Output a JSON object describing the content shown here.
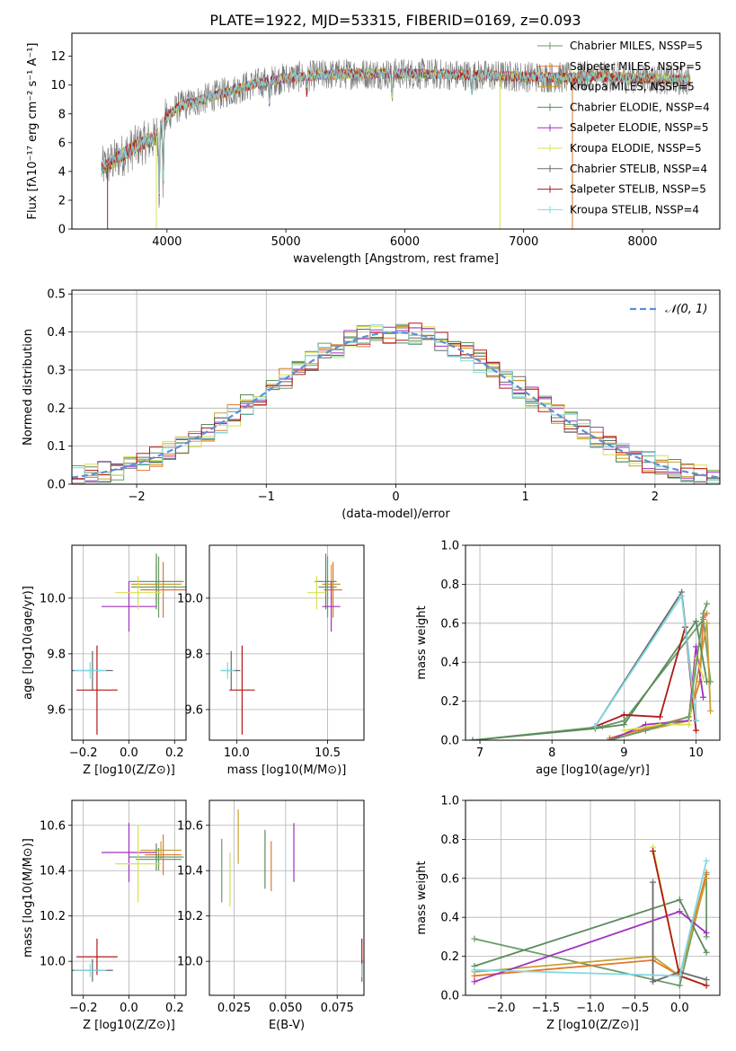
{
  "figure_title": "PLATE=1922, MJD=53315, FIBERID=0169, z=0.093",
  "series_colors": [
    "#6a9a6a",
    "#e07830",
    "#c8a030",
    "#5a8a5a",
    "#a030c0",
    "#d8e050",
    "#6a6a6a",
    "#b01818",
    "#80d8e0"
  ],
  "chart_data": [
    {
      "type": "line",
      "panel": "spectrum",
      "title": "PLATE=1922, MJD=53315, FIBERID=0169, z=0.093",
      "xlabel": "wavelength [Angstrom, rest frame]",
      "ylabel": "Flux [fλ10⁻¹⁷ erg cm⁻² s⁻¹ A⁻¹]",
      "xlim": [
        3200,
        8650
      ],
      "ylim": [
        0,
        13.6
      ],
      "xticks": [
        4000,
        5000,
        6000,
        7000,
        8000
      ],
      "yticks": [
        0,
        2,
        4,
        6,
        8,
        10,
        12
      ],
      "legend_position": "top-right",
      "series": [
        {
          "name": "Chabrier MILES, NSSP=5"
        },
        {
          "name": "Salpeter MILES, NSSP=5"
        },
        {
          "name": "Kroupa MILES, NSSP=5"
        },
        {
          "name": "Chabrier ELODIE, NSSP=4"
        },
        {
          "name": "Salpeter ELODIE, NSSP=5"
        },
        {
          "name": "Kroupa ELODIE, NSSP=5"
        },
        {
          "name": "Chabrier STELIB, NSSP=4"
        },
        {
          "name": "Salpeter STELIB, NSSP=5"
        },
        {
          "name": "Kroupa STELIB, NSSP=4"
        }
      ],
      "continuum": {
        "x": [
          3450,
          3600,
          3750,
          3900,
          4000,
          4100,
          4300,
          4500,
          4700,
          5000,
          5300,
          5600,
          6000,
          6500,
          7000,
          7400,
          7500,
          8000,
          8400
        ],
        "y": [
          4.2,
          5.0,
          5.8,
          6.3,
          7.8,
          8.5,
          9.0,
          9.5,
          10.0,
          10.5,
          10.7,
          10.8,
          10.8,
          10.7,
          10.6,
          10.5,
          10.6,
          10.5,
          10.3
        ]
      },
      "absorption_lines": [
        {
          "x": 3934,
          "y": 2.5
        },
        {
          "x": 3968,
          "y": 3.0
        },
        {
          "x": 4861,
          "y": 8.8
        },
        {
          "x": 5175,
          "y": 9.5
        },
        {
          "x": 5893,
          "y": 9.2
        },
        {
          "x": 6563,
          "y": 9.5
        }
      ],
      "spikes": [
        {
          "x": 3500,
          "y": 0,
          "series": 7
        },
        {
          "x": 3910,
          "y": 0,
          "series": 5
        },
        {
          "x": 6800,
          "y": 0,
          "series": 5
        },
        {
          "x": 7410,
          "y": 0,
          "series": 1
        }
      ]
    },
    {
      "type": "step",
      "panel": "residuals",
      "xlabel": "(data-model)/error",
      "ylabel": "Normed distribution",
      "xlim": [
        -2.5,
        2.5
      ],
      "ylim": [
        0,
        0.51
      ],
      "xticks": [
        -2,
        -1,
        0,
        1,
        2
      ],
      "yticks": [
        0.0,
        0.1,
        0.2,
        0.3,
        0.4,
        0.5
      ],
      "legend_position": "top-right",
      "legend": "𝒩(0, 1)",
      "bin_width": 0.1,
      "reference": {
        "name": "𝒩(0, 1)",
        "mean": 0,
        "sigma": 1,
        "color": "#5b8fd8"
      }
    },
    {
      "type": "scatter",
      "panel": "age_vs_Z",
      "xlabel": "Z [log10(Z/Z⊙)]",
      "ylabel": "age  [log10(age/yr)]",
      "xlim": [
        -0.25,
        0.25
      ],
      "ylim": [
        9.49,
        10.19
      ],
      "xticks": [
        -0.2,
        0.0,
        0.2
      ],
      "yticks": [
        9.6,
        9.8,
        10.0
      ],
      "points": [
        {
          "series": 0,
          "x": 0.13,
          "y": 10.04,
          "xerr": 0.12,
          "yerr": 0.11
        },
        {
          "series": 1,
          "x": 0.15,
          "y": 10.03,
          "xerr": 0.1,
          "yerr": 0.1
        },
        {
          "series": 2,
          "x": 0.12,
          "y": 10.05,
          "xerr": 0.11,
          "yerr": 0.07
        },
        {
          "series": 3,
          "x": 0.12,
          "y": 10.06,
          "xerr": 0.12,
          "yerr": 0.1
        },
        {
          "series": 4,
          "x": 0.0,
          "y": 9.97,
          "xerr": 0.12,
          "yerr": 0.09
        },
        {
          "series": 5,
          "x": 0.04,
          "y": 10.02,
          "xerr": 0.1,
          "yerr": 0.06
        },
        {
          "series": 6,
          "x": -0.16,
          "y": 9.74,
          "xerr": 0.09,
          "yerr": 0.07
        },
        {
          "series": 7,
          "x": -0.14,
          "y": 9.67,
          "xerr": 0.09,
          "yerr": 0.16
        },
        {
          "series": 8,
          "x": -0.17,
          "y": 9.74,
          "xerr": 0.07,
          "yerr": 0.03
        }
      ]
    },
    {
      "type": "scatter",
      "panel": "age_vs_mass",
      "xlabel": "mass [log10(M/M⊙)]",
      "ylabel": "",
      "xlim": [
        9.85,
        10.7
      ],
      "ylim": [
        9.49,
        10.19
      ],
      "xticks": [
        10.0,
        10.5
      ],
      "yticks": [
        9.6,
        9.8,
        10.0
      ],
      "points": [
        {
          "series": 0,
          "x": 10.5,
          "y": 10.04,
          "xerr": 0.05,
          "yerr": 0.11
        },
        {
          "series": 1,
          "x": 10.53,
          "y": 10.03,
          "xerr": 0.05,
          "yerr": 0.1
        },
        {
          "series": 2,
          "x": 10.52,
          "y": 10.05,
          "xerr": 0.05,
          "yerr": 0.07
        },
        {
          "series": 3,
          "x": 10.49,
          "y": 10.06,
          "xerr": 0.06,
          "yerr": 0.1
        },
        {
          "series": 4,
          "x": 10.52,
          "y": 9.97,
          "xerr": 0.05,
          "yerr": 0.09
        },
        {
          "series": 5,
          "x": 10.44,
          "y": 10.02,
          "xerr": 0.05,
          "yerr": 0.06
        },
        {
          "series": 6,
          "x": 9.97,
          "y": 9.74,
          "xerr": 0.05,
          "yerr": 0.07
        },
        {
          "series": 7,
          "x": 10.03,
          "y": 9.67,
          "xerr": 0.07,
          "yerr": 0.16
        },
        {
          "series": 8,
          "x": 9.95,
          "y": 9.74,
          "xerr": 0.04,
          "yerr": 0.03
        }
      ]
    },
    {
      "type": "line",
      "panel": "weight_vs_age",
      "xlabel": "age  [log10(age/yr)]",
      "ylabel": "mass weight",
      "xlim": [
        6.8,
        10.33
      ],
      "ylim": [
        0,
        1.0
      ],
      "xticks": [
        7,
        8,
        9,
        10
      ],
      "yticks": [
        0.0,
        0.2,
        0.4,
        0.6,
        0.8,
        1.0
      ],
      "series": [
        {
          "x": [
            6.9,
            8.7,
            9.0,
            10.1,
            10.2
          ],
          "y": [
            0.0,
            0.07,
            0.1,
            0.62,
            0.3
          ]
        },
        {
          "x": [
            8.8,
            9.2,
            9.9,
            10.05,
            10.1,
            10.15
          ],
          "y": [
            0.01,
            0.05,
            0.12,
            0.3,
            0.63,
            0.65
          ]
        },
        {
          "x": [
            8.8,
            9.3,
            9.9,
            9.95,
            10.15,
            10.2
          ],
          "y": [
            0.0,
            0.05,
            0.1,
            0.18,
            0.6,
            0.15
          ]
        },
        {
          "x": [
            6.9,
            8.6,
            9.0,
            10.0,
            10.15
          ],
          "y": [
            0.0,
            0.06,
            0.08,
            0.61,
            0.3
          ]
        },
        {
          "x": [
            8.8,
            9.3,
            9.9,
            10.0,
            10.1
          ],
          "y": [
            0.0,
            0.08,
            0.1,
            0.48,
            0.22
          ]
        },
        {
          "x": [
            9.0,
            9.5,
            9.9,
            10.0,
            10.1
          ],
          "y": [
            0.05,
            0.08,
            0.08,
            0.42,
            0.32
          ]
        },
        {
          "x": [
            8.6,
            9.8,
            10.0
          ],
          "y": [
            0.07,
            0.76,
            0.1
          ]
        },
        {
          "x": [
            8.6,
            9.0,
            9.5,
            9.85,
            10.0
          ],
          "y": [
            0.07,
            0.13,
            0.12,
            0.58,
            0.05
          ]
        },
        {
          "x": [
            8.6,
            9.8,
            10.0
          ],
          "y": [
            0.07,
            0.74,
            0.1
          ]
        },
        {
          "x": [
            8.8,
            9.3,
            9.9,
            10.1,
            10.15
          ],
          "y": [
            0.0,
            0.05,
            0.12,
            0.65,
            0.7
          ]
        }
      ]
    },
    {
      "type": "scatter",
      "panel": "mass_vs_Z",
      "xlabel": "Z [log10(Z/Z⊙)]",
      "ylabel": "mass [log10(M/M⊙)]",
      "xlim": [
        -0.25,
        0.25
      ],
      "ylim": [
        9.85,
        10.71
      ],
      "xticks": [
        -0.2,
        0.0,
        0.2
      ],
      "yticks": [
        10.0,
        10.2,
        10.4,
        10.6
      ],
      "points": [
        {
          "series": 0,
          "x": 0.13,
          "y": 10.45,
          "xerr": 0.1,
          "yerr": 0.05
        },
        {
          "series": 1,
          "x": 0.15,
          "y": 10.47,
          "xerr": 0.08,
          "yerr": 0.09
        },
        {
          "series": 2,
          "x": 0.14,
          "y": 10.49,
          "xerr": 0.09,
          "yerr": 0.04
        },
        {
          "series": 3,
          "x": 0.12,
          "y": 10.46,
          "xerr": 0.12,
          "yerr": 0.06
        },
        {
          "series": 4,
          "x": 0.0,
          "y": 10.48,
          "xerr": 0.12,
          "yerr": 0.13
        },
        {
          "series": 5,
          "x": 0.04,
          "y": 10.43,
          "xerr": 0.1,
          "yerr": 0.17
        },
        {
          "series": 6,
          "x": -0.16,
          "y": 9.96,
          "xerr": 0.09,
          "yerr": 0.05
        },
        {
          "series": 7,
          "x": -0.14,
          "y": 10.02,
          "xerr": 0.09,
          "yerr": 0.08
        },
        {
          "series": 8,
          "x": -0.17,
          "y": 9.96,
          "xerr": 0.07,
          "yerr": 0.03
        }
      ]
    },
    {
      "type": "scatter",
      "panel": "mass_vs_EBV",
      "xlabel": "E(B-V)",
      "ylabel": "",
      "xlim": [
        0.013,
        0.088
      ],
      "ylim": [
        9.85,
        10.71
      ],
      "xticks": [
        0.025,
        0.05,
        0.075
      ],
      "yticks": [
        10.0,
        10.2,
        10.4,
        10.6
      ],
      "points": [
        {
          "series": 0,
          "x": 0.019,
          "y": 10.4,
          "xerr": 0,
          "yerr": 0.14
        },
        {
          "series": 1,
          "x": 0.043,
          "y": 10.42,
          "xerr": 0,
          "yerr": 0.11
        },
        {
          "series": 2,
          "x": 0.027,
          "y": 10.55,
          "xerr": 0,
          "yerr": 0.12
        },
        {
          "series": 3,
          "x": 0.04,
          "y": 10.45,
          "xerr": 0,
          "yerr": 0.13
        },
        {
          "series": 4,
          "x": 0.054,
          "y": 10.48,
          "xerr": 0,
          "yerr": 0.13
        },
        {
          "series": 5,
          "x": 0.023,
          "y": 10.36,
          "xerr": 0,
          "yerr": 0.12
        },
        {
          "series": 6,
          "x": 0.087,
          "y": 9.96,
          "xerr": 0,
          "yerr": 0.05
        },
        {
          "series": 7,
          "x": 0.087,
          "y": 10.02,
          "xerr": 0,
          "yerr": 0.08
        },
        {
          "series": 8,
          "x": 0.087,
          "y": 9.96,
          "xerr": 0,
          "yerr": 0.03
        }
      ]
    },
    {
      "type": "line",
      "panel": "weight_vs_Z",
      "xlabel": "Z [log10(Z/Z⊙)]",
      "ylabel": "mass weight",
      "xlim": [
        -2.4,
        0.45
      ],
      "ylim": [
        0,
        1.0
      ],
      "xticks": [
        -2.0,
        -1.5,
        -1.0,
        -0.5,
        0.0
      ],
      "yticks": [
        0.0,
        0.2,
        0.4,
        0.6,
        0.8,
        1.0
      ],
      "series": [
        {
          "x": [
            -2.3,
            0.0,
            0.3,
            0.3
          ],
          "y": [
            0.29,
            0.05,
            0.62,
            0.3
          ]
        },
        {
          "x": [
            -2.3,
            -0.3,
            0.0,
            0.3
          ],
          "y": [
            0.1,
            0.18,
            0.1,
            0.63
          ]
        },
        {
          "x": [
            -2.3,
            -0.3,
            0.0,
            0.3
          ],
          "y": [
            0.12,
            0.2,
            0.1,
            0.6
          ]
        },
        {
          "x": [
            -2.3,
            0.0,
            0.3
          ],
          "y": [
            0.15,
            0.49,
            0.22
          ]
        },
        {
          "x": [
            -2.3,
            0.0,
            0.3
          ],
          "y": [
            0.07,
            0.43,
            0.32
          ]
        },
        {
          "x": [
            -0.3,
            0.0,
            0.3
          ],
          "y": [
            0.76,
            0.1,
            0.05
          ]
        },
        {
          "x": [
            -0.3,
            -0.3,
            0.0,
            0.3
          ],
          "y": [
            0.58,
            0.07,
            0.12,
            0.08
          ]
        },
        {
          "x": [
            -0.3,
            0.0,
            0.3
          ],
          "y": [
            0.74,
            0.1,
            0.05
          ]
        },
        {
          "x": [
            -2.3,
            0.0,
            0.3
          ],
          "y": [
            0.13,
            0.1,
            0.69
          ]
        }
      ]
    }
  ]
}
